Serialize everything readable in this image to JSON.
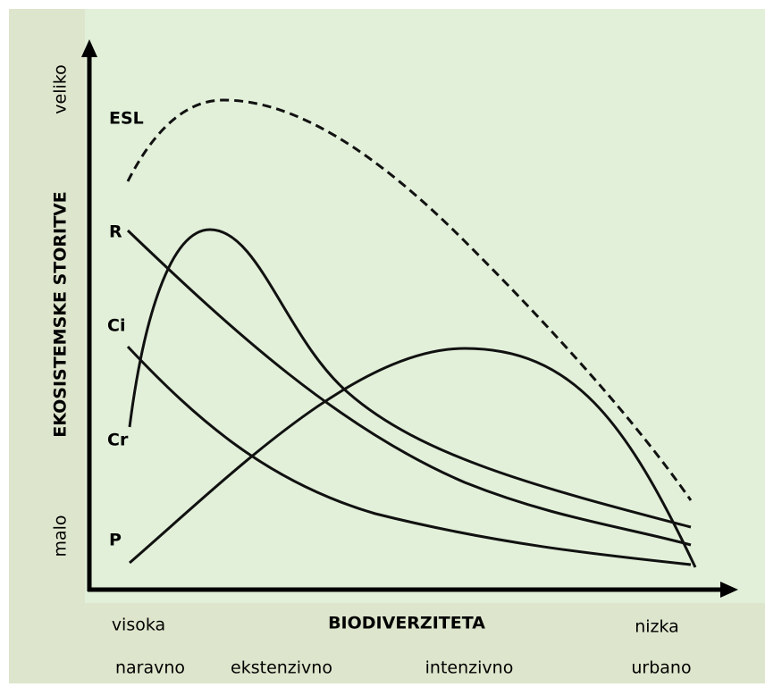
{
  "y_axis": {
    "high": "veliko",
    "title": "EKOSISTEMSKE STORITVE",
    "low": "malo"
  },
  "x_axis": {
    "high": "visoka",
    "title": "BIODIVERZITETA",
    "low": "nizka"
  },
  "land_use": [
    "naravno",
    "ekstenzivno",
    "intenzivno",
    "urbano"
  ],
  "curves": [
    {
      "label": "ESL"
    },
    {
      "label": "R"
    },
    {
      "label": "Ci"
    },
    {
      "label": "Cr"
    },
    {
      "label": "P"
    }
  ]
}
